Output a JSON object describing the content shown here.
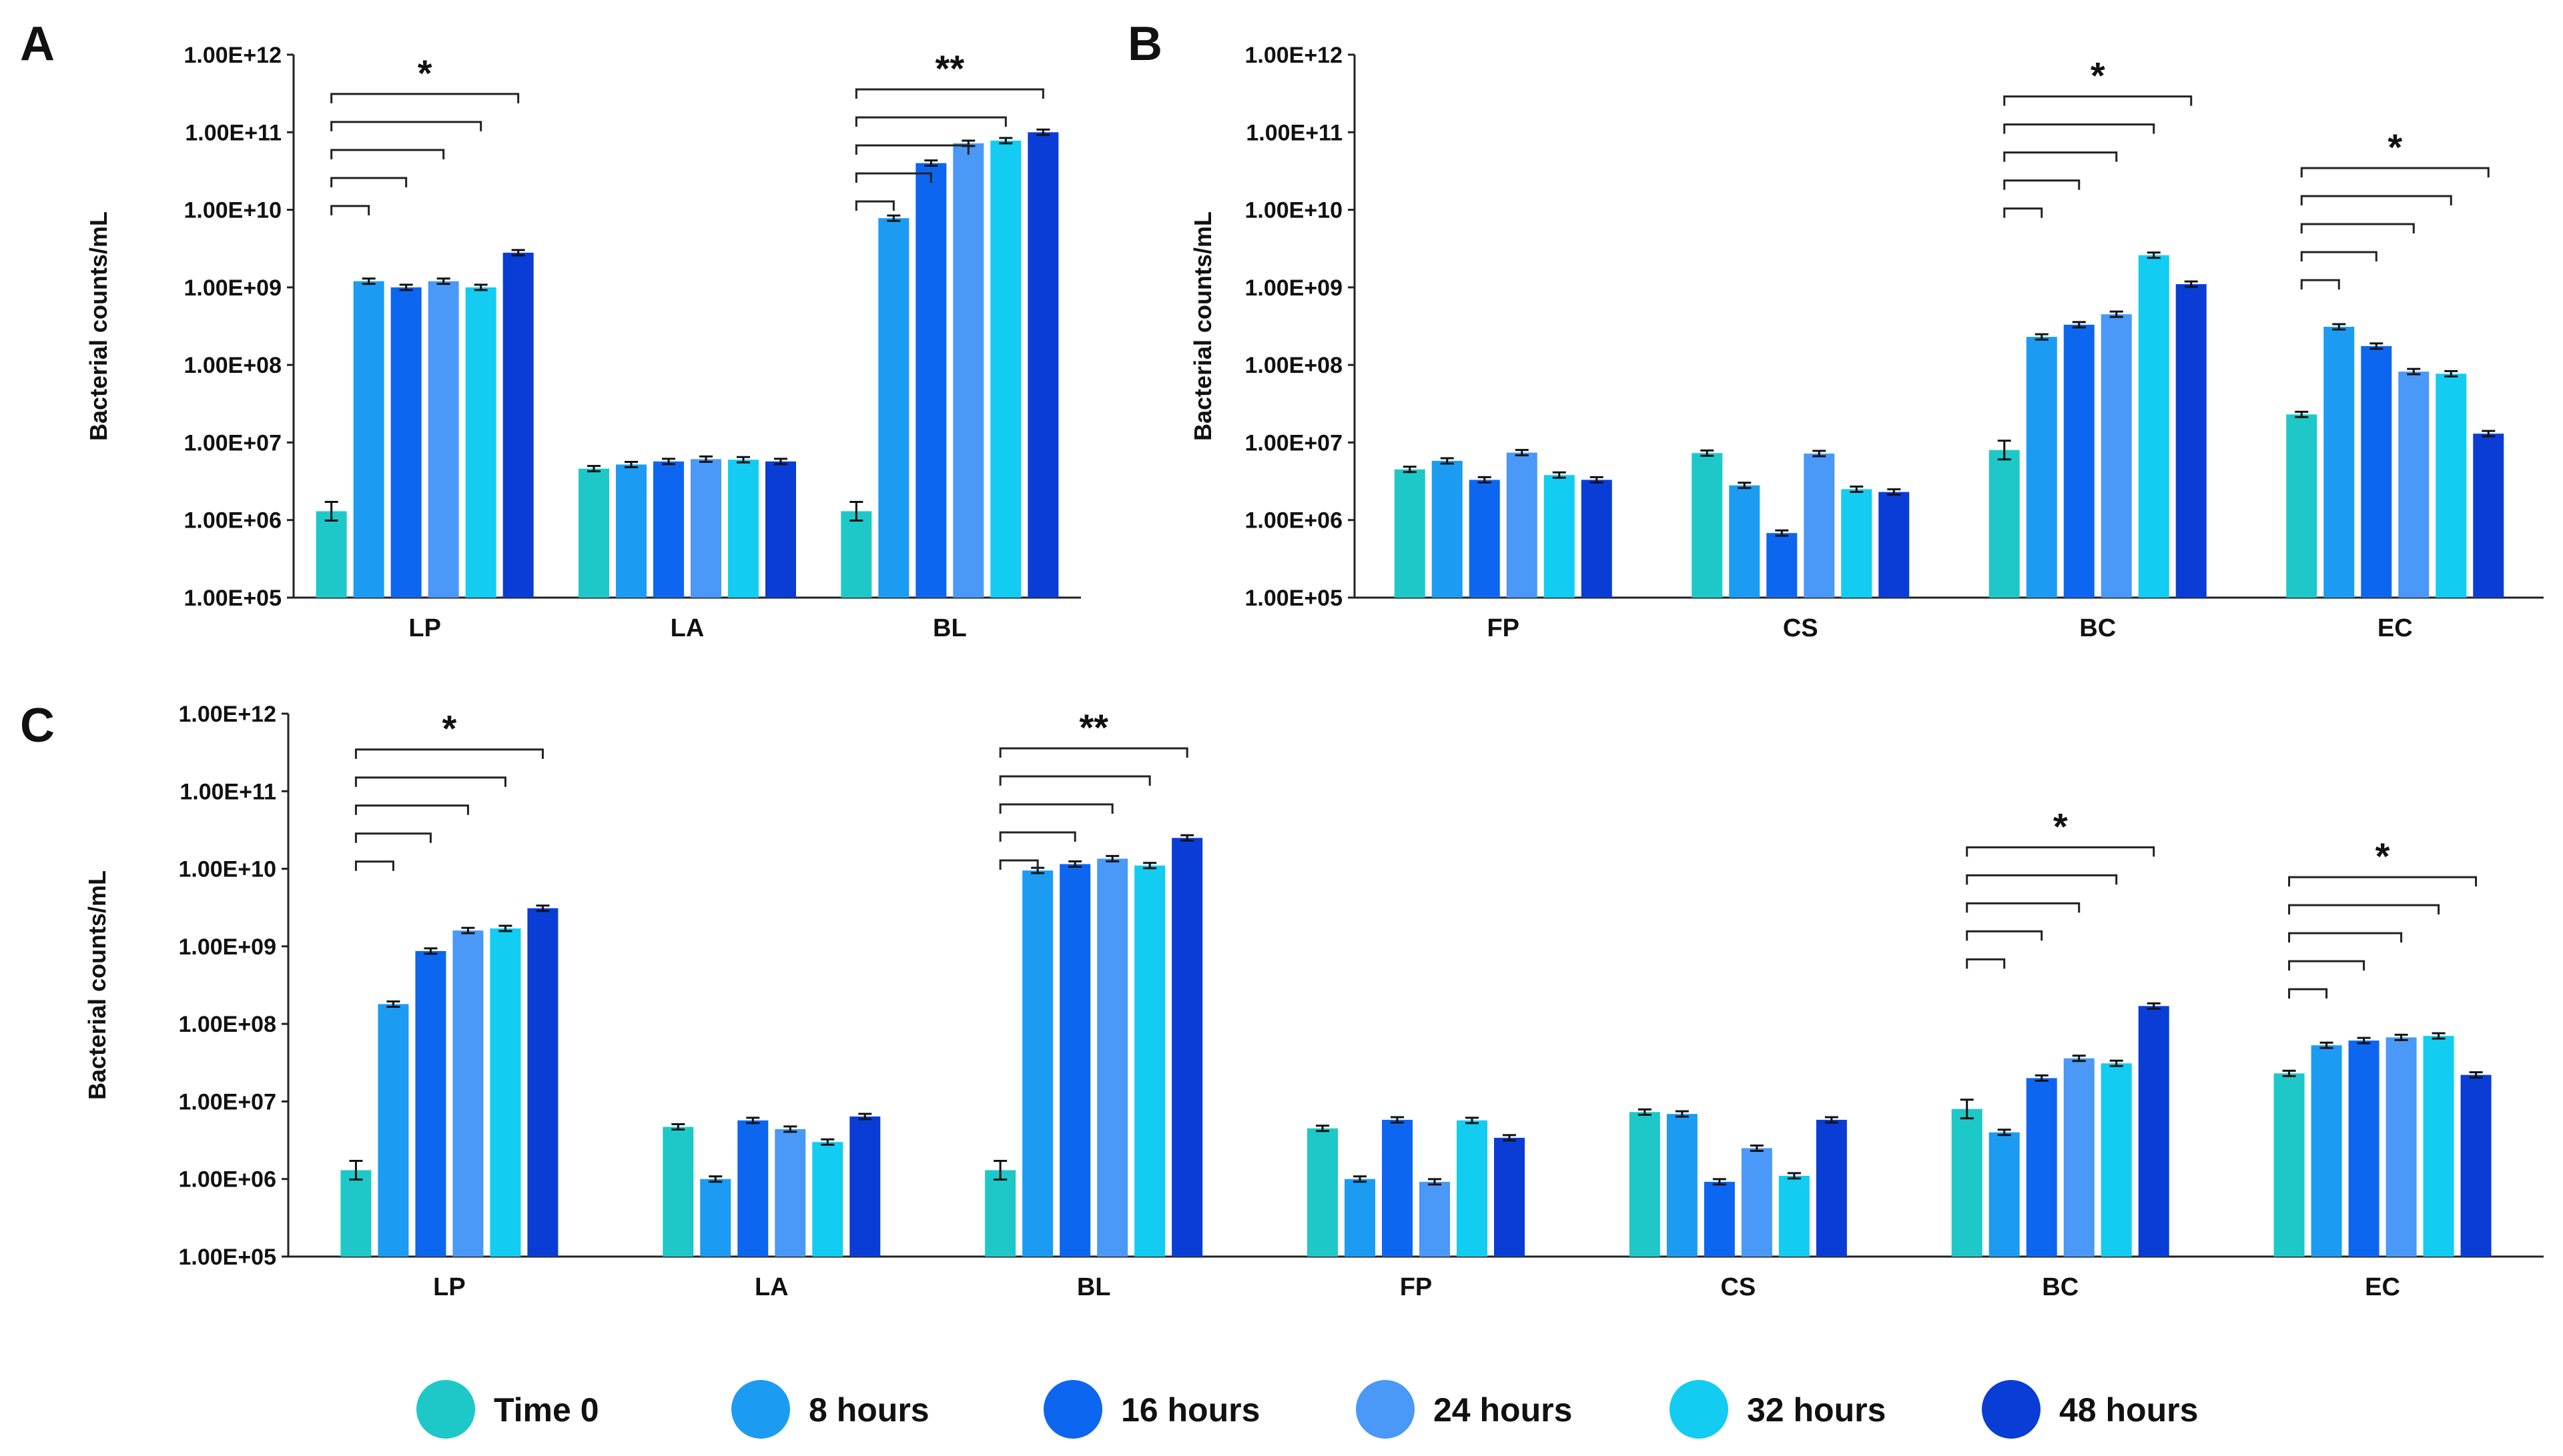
{
  "colors": [
    "#1ec8c8",
    "#1b9cf2",
    "#0d66f0",
    "#4a98f7",
    "#12ccf2",
    "#0a3dd6"
  ],
  "legend": [
    "Time 0",
    "8 hours",
    "16 hours",
    "24 hours",
    "32 hours",
    "48 hours"
  ],
  "chart_data": [
    {
      "panel": "A",
      "type": "bar",
      "ylabel": "Bacterial counts/mL",
      "yscale": "log",
      "ylim": [
        100000,
        1000000000000
      ],
      "yticks": [
        "1.00E+05",
        "1.00E+06",
        "1.00E+07",
        "1.00E+08",
        "1.00E+09",
        "1.00E+10",
        "1.00E+11",
        "1.00E+12"
      ],
      "categories": [
        "LP",
        "LA",
        "BL"
      ],
      "series": [
        {
          "name": "Time 0",
          "values": [
            1300000,
            4600000,
            1300000
          ]
        },
        {
          "name": "8 hours",
          "values": [
            1200000000,
            5200000,
            7800000000
          ]
        },
        {
          "name": "16 hours",
          "values": [
            1000000000,
            5700000,
            40000000000
          ]
        },
        {
          "name": "24 hours",
          "values": [
            1200000000,
            6100000,
            72000000000
          ]
        },
        {
          "name": "32 hours",
          "values": [
            1000000000,
            6000000,
            78000000000
          ]
        },
        {
          "name": "48 hours",
          "values": [
            2800000000,
            5700000,
            100000000000
          ]
        }
      ],
      "significance": [
        {
          "category": "LP",
          "label": "*"
        },
        {
          "category": "BL",
          "label": "**"
        }
      ]
    },
    {
      "panel": "B",
      "type": "bar",
      "ylabel": "Bacterial counts/mL",
      "yscale": "log",
      "ylim": [
        100000,
        1000000000000
      ],
      "yticks": [
        "1.00E+05",
        "1.00E+06",
        "1.00E+07",
        "1.00E+08",
        "1.00E+09",
        "1.00E+10",
        "1.00E+11",
        "1.00E+12"
      ],
      "categories": [
        "FP",
        "CS",
        "BC",
        "EC"
      ],
      "series": [
        {
          "name": "Time 0",
          "values": [
            4500000,
            7300000,
            8000000,
            23000000
          ]
        },
        {
          "name": "8 hours",
          "values": [
            5800000,
            2800000,
            230000000,
            310000000
          ]
        },
        {
          "name": "16 hours",
          "values": [
            3300000,
            680000,
            330000000,
            175000000
          ]
        },
        {
          "name": "24 hours",
          "values": [
            7400000,
            7200000,
            450000000,
            82000000
          ]
        },
        {
          "name": "32 hours",
          "values": [
            3800000,
            2500000,
            2600000000,
            77000000
          ]
        },
        {
          "name": "48 hours",
          "values": [
            3300000,
            2300000,
            1100000000,
            13000000
          ]
        }
      ],
      "significance": [
        {
          "category": "BC",
          "label": "*"
        },
        {
          "category": "EC",
          "label": "*"
        }
      ]
    },
    {
      "panel": "C",
      "type": "bar",
      "ylabel": "Bacterial counts/mL",
      "yscale": "log",
      "ylim": [
        100000,
        1000000000000
      ],
      "yticks": [
        "1.00E+05",
        "1.00E+06",
        "1.00E+07",
        "1.00E+08",
        "1.00E+09",
        "1.00E+10",
        "1.00E+11",
        "1.00E+12"
      ],
      "categories": [
        "LP",
        "LA",
        "BL",
        "FP",
        "CS",
        "BC",
        "EC"
      ],
      "series": [
        {
          "name": "Time 0",
          "values": [
            1300000,
            4700000,
            1300000,
            4500000,
            7300000,
            8000000,
            23000000
          ]
        },
        {
          "name": "8 hours",
          "values": [
            180000000,
            1000000,
            9500000000,
            1000000,
            6900000,
            4000000,
            53000000
          ]
        },
        {
          "name": "16 hours",
          "values": [
            870000000,
            5700000,
            11500000000,
            5800000,
            920000,
            20000000,
            61000000
          ]
        },
        {
          "name": "24 hours",
          "values": [
            1600000000,
            4400000,
            13500000000,
            920000,
            2500000,
            36000000,
            67000000
          ]
        },
        {
          "name": "32 hours",
          "values": [
            1700000000,
            3000000,
            11000000000,
            5700000,
            1100000,
            31000000,
            70000000
          ]
        },
        {
          "name": "48 hours",
          "values": [
            3100000000,
            6400000,
            25000000000,
            3400000,
            5800000,
            170000000,
            22000000
          ]
        }
      ],
      "significance": [
        {
          "category": "LP",
          "label": "*"
        },
        {
          "category": "BL",
          "label": "**"
        },
        {
          "category": "BC",
          "label": "*"
        },
        {
          "category": "EC",
          "label": "*"
        }
      ]
    }
  ]
}
